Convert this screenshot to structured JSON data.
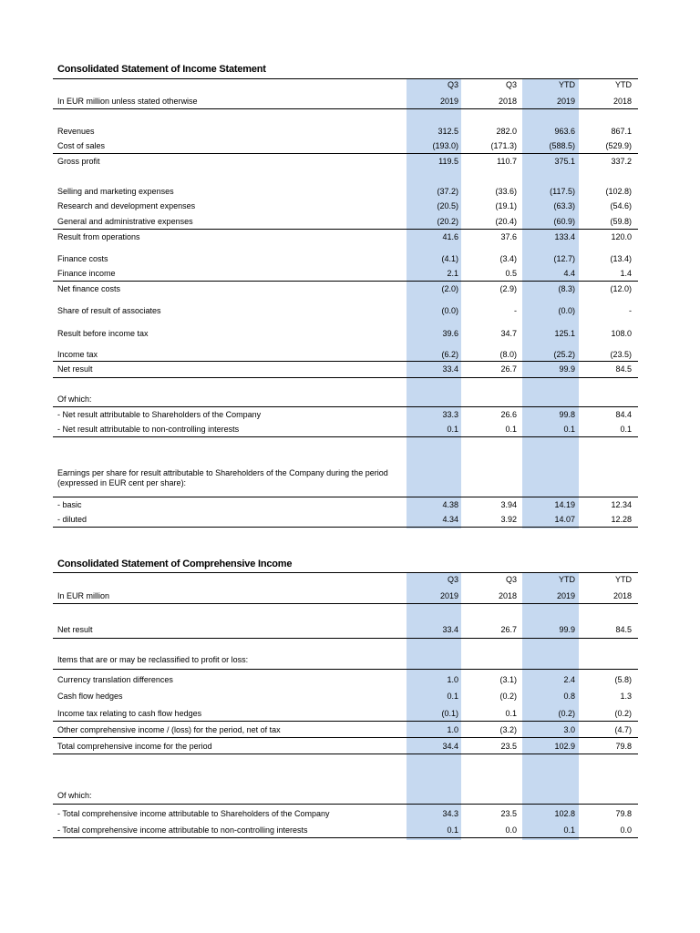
{
  "income": {
    "title": "Consolidated Statement of Income Statement",
    "unit_label": "In EUR million unless stated otherwise",
    "headers": {
      "c1": [
        "Q3",
        "2019"
      ],
      "c2": [
        "Q3",
        "2018"
      ],
      "c3": [
        "YTD",
        "2019"
      ],
      "c4": [
        "YTD",
        "2018"
      ]
    },
    "rows": [
      {
        "label": "Revenues",
        "v": [
          "312.5",
          "282.0",
          "963.6",
          "867.1"
        ]
      },
      {
        "label": "Cost of sales",
        "v": [
          "(193.0)",
          "(171.3)",
          "(588.5)",
          "(529.9)"
        ]
      },
      {
        "label": "Gross profit",
        "v": [
          "119.5",
          "110.7",
          "375.1",
          "337.2"
        ]
      },
      {
        "label": "Selling and marketing expenses",
        "v": [
          "(37.2)",
          "(33.6)",
          "(117.5)",
          "(102.8)"
        ]
      },
      {
        "label": "Research and development expenses",
        "v": [
          "(20.5)",
          "(19.1)",
          "(63.3)",
          "(54.6)"
        ]
      },
      {
        "label": "General and administrative expenses",
        "v": [
          "(20.2)",
          "(20.4)",
          "(60.9)",
          "(59.8)"
        ]
      },
      {
        "label": "Result from operations",
        "v": [
          "41.6",
          "37.6",
          "133.4",
          "120.0"
        ]
      },
      {
        "label": "Finance costs",
        "v": [
          "(4.1)",
          "(3.4)",
          "(12.7)",
          "(13.4)"
        ]
      },
      {
        "label": "Finance income",
        "v": [
          "2.1",
          "0.5",
          "4.4",
          "1.4"
        ]
      },
      {
        "label": "Net finance costs",
        "v": [
          "(2.0)",
          "(2.9)",
          "(8.3)",
          "(12.0)"
        ]
      },
      {
        "label": "Share of result of associates",
        "v": [
          "(0.0)",
          "-",
          "(0.0)",
          "-"
        ]
      },
      {
        "label": "Result before income tax",
        "v": [
          "39.6",
          "34.7",
          "125.1",
          "108.0"
        ]
      },
      {
        "label": "Income tax",
        "v": [
          "(6.2)",
          "(8.0)",
          "(25.2)",
          "(23.5)"
        ]
      },
      {
        "label": "Net result",
        "v": [
          "33.4",
          "26.7",
          "99.9",
          "84.5"
        ]
      },
      {
        "label": "Of which:",
        "v": [
          "",
          "",
          "",
          ""
        ]
      },
      {
        "label": "- Net result attributable to Shareholders of the Company",
        "v": [
          "33.3",
          "26.6",
          "99.8",
          "84.4"
        ]
      },
      {
        "label": "- Net result attributable to non-controlling interests",
        "v": [
          "0.1",
          "0.1",
          "0.1",
          "0.1"
        ]
      },
      {
        "label": "Earnings per share for result attributable to Shareholders of the Company during the period (expressed in EUR cent per share):",
        "v": [
          "",
          "",
          "",
          ""
        ]
      },
      {
        "label": " - basic",
        "v": [
          "4.38",
          "3.94",
          "14.19",
          "12.34"
        ]
      },
      {
        "label": " - diluted",
        "v": [
          "4.34",
          "3.92",
          "14.07",
          "12.28"
        ]
      }
    ]
  },
  "comprehensive": {
    "title": "Consolidated Statement of Comprehensive Income",
    "unit_label": "In EUR million",
    "headers": {
      "c1": [
        "Q3",
        "2019"
      ],
      "c2": [
        "Q3",
        "2018"
      ],
      "c3": [
        "YTD",
        "2019"
      ],
      "c4": [
        "YTD",
        "2018"
      ]
    },
    "rows": [
      {
        "label": "Net result",
        "v": [
          "33.4",
          "26.7",
          "99.9",
          "84.5"
        ]
      },
      {
        "label": "Items that are or may be reclassified to profit or loss:",
        "v": [
          "",
          "",
          "",
          ""
        ]
      },
      {
        "label": "Currency translation differences",
        "v": [
          "1.0",
          "(3.1)",
          "2.4",
          "(5.8)"
        ]
      },
      {
        "label": "Cash flow hedges",
        "v": [
          "0.1",
          "(0.2)",
          "0.8",
          "1.3"
        ]
      },
      {
        "label": "Income tax relating to cash flow hedges",
        "v": [
          "(0.1)",
          "0.1",
          "(0.2)",
          "(0.2)"
        ]
      },
      {
        "label": "Other comprehensive income / (loss) for the period, net of tax",
        "v": [
          "1.0",
          "(3.2)",
          "3.0",
          "(4.7)"
        ]
      },
      {
        "label": "Total comprehensive income for the period",
        "v": [
          "34.4",
          "23.5",
          "102.9",
          "79.8"
        ]
      },
      {
        "label": "Of which:",
        "v": [
          "",
          "",
          "",
          ""
        ]
      },
      {
        "label": "- Total comprehensive income attributable to Shareholders of the Company",
        "v": [
          "34.3",
          "23.5",
          "102.8",
          "79.8"
        ]
      },
      {
        "label": "- Total comprehensive income attributable to non-controlling interests",
        "v": [
          "0.1",
          "0.0",
          "0.1",
          "0.0"
        ]
      }
    ]
  }
}
